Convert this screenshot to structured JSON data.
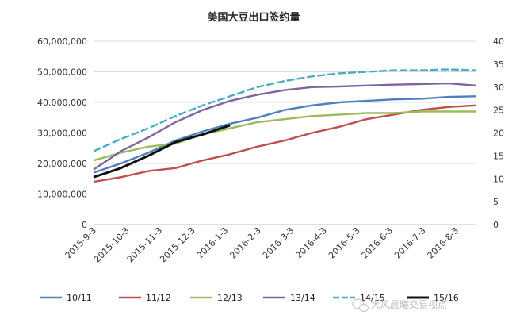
{
  "chart_data": {
    "type": "line",
    "title": "美国大豆出口签约量",
    "y_left": {
      "min": 0,
      "max": 60000000,
      "ticks": [
        "0",
        "10,000,000",
        "20,000,000",
        "30,000,000",
        "40,000,000",
        "50,000,000",
        "60,000,000"
      ]
    },
    "y_right": {
      "min": 0,
      "max": 40,
      "ticks": [
        "0",
        "5",
        "10",
        "15",
        "20",
        "25",
        "30",
        "35",
        "40"
      ]
    },
    "x_ticks": [
      "2015-9-3",
      "2015-10-3",
      "2015-11-3",
      "2015-12-3",
      "2016-1-3",
      "2016-2-3",
      "2016-3-3",
      "2016-4-3",
      "2016-5-3",
      "2016-6-3",
      "2016-7-3",
      "2016-8-3"
    ],
    "series": [
      {
        "name": "10/11",
        "color": "#4e81bd",
        "dash": "solid",
        "values": [
          17000000,
          20000000,
          23500000,
          27500000,
          30500000,
          33000000,
          35000000,
          37500000,
          39000000,
          40000000,
          40500000,
          41000000,
          41200000,
          41800000,
          42000000
        ]
      },
      {
        "name": "11/12",
        "color": "#c0504d",
        "dash": "solid",
        "values": [
          14000000,
          15500000,
          17500000,
          18500000,
          21000000,
          23000000,
          25500000,
          27500000,
          30000000,
          32000000,
          34500000,
          36000000,
          37500000,
          38500000,
          39000000
        ]
      },
      {
        "name": "12/13",
        "color": "#9bbb59",
        "dash": "solid",
        "values": [
          21000000,
          23500000,
          25500000,
          26500000,
          29500000,
          31500000,
          33500000,
          34500000,
          35500000,
          36000000,
          36500000,
          36500000,
          37000000,
          37000000,
          37000000
        ]
      },
      {
        "name": "13/14",
        "color": "#8064a2",
        "dash": "solid",
        "values": [
          18000000,
          24000000,
          28500000,
          33500000,
          37500000,
          40500000,
          42500000,
          44000000,
          45000000,
          45200000,
          45500000,
          45800000,
          46000000,
          46200000,
          45500000
        ]
      },
      {
        "name": "14/15",
        "color": "#4bacc6",
        "dash": "dash",
        "values": [
          24000000,
          28000000,
          31500000,
          35500000,
          39000000,
          42000000,
          45000000,
          47000000,
          48500000,
          49500000,
          50000000,
          50500000,
          50500000,
          50800000,
          50500000
        ]
      },
      {
        "name": "15/16",
        "color": "#111111",
        "dash": "solid",
        "values": [
          15500000,
          18500000,
          22500000,
          27000000,
          29500000,
          32500000
        ]
      }
    ]
  },
  "watermark": "大风晨曦交易视点"
}
